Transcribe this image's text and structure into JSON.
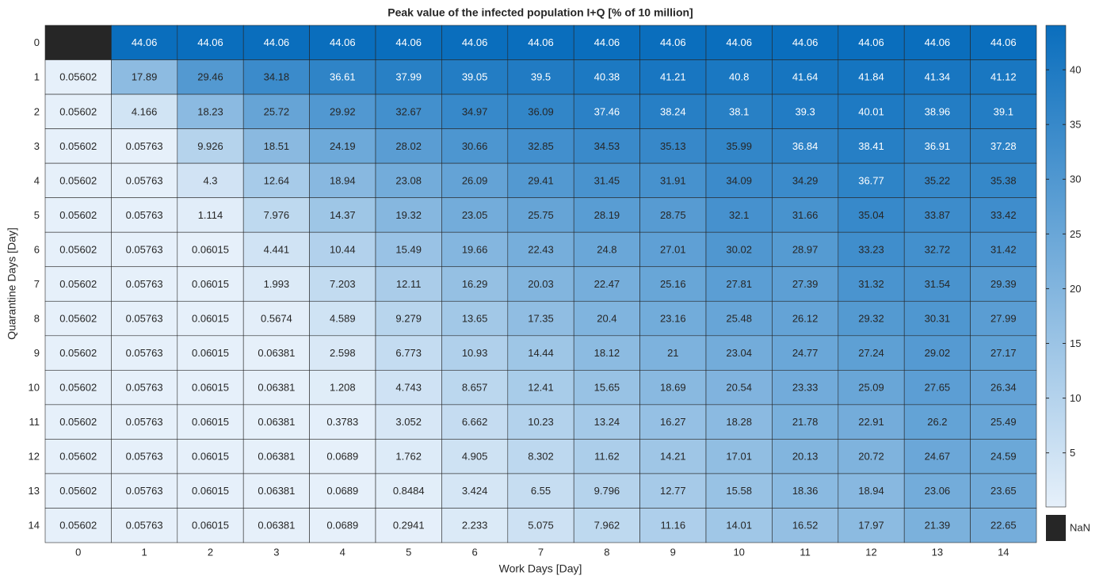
{
  "chart_data": {
    "type": "heatmap",
    "title": "Peak value of the infected population I+Q [% of 10 million]",
    "xlabel": "Work Days [Day]",
    "ylabel": "Quarantine Days [Day]",
    "x": [
      0,
      1,
      2,
      3,
      4,
      5,
      6,
      7,
      8,
      9,
      10,
      11,
      12,
      13,
      14
    ],
    "y": [
      0,
      1,
      2,
      3,
      4,
      5,
      6,
      7,
      8,
      9,
      10,
      11,
      12,
      13,
      14
    ],
    "values": [
      [
        null,
        44.06,
        44.06,
        44.06,
        44.06,
        44.06,
        44.06,
        44.06,
        44.06,
        44.06,
        44.06,
        44.06,
        44.06,
        44.06,
        44.06
      ],
      [
        0.05602,
        17.89,
        29.46,
        34.18,
        36.61,
        37.99,
        39.05,
        39.5,
        40.38,
        41.21,
        40.8,
        41.64,
        41.84,
        41.34,
        41.12
      ],
      [
        0.05602,
        4.166,
        18.23,
        25.72,
        29.92,
        32.67,
        34.97,
        36.09,
        37.46,
        38.24,
        38.1,
        39.3,
        40.01,
        38.96,
        39.1
      ],
      [
        0.05602,
        0.05763,
        9.926,
        18.51,
        24.19,
        28.02,
        30.66,
        32.85,
        34.53,
        35.13,
        35.99,
        36.84,
        38.41,
        36.91,
        37.28
      ],
      [
        0.05602,
        0.05763,
        4.3,
        12.64,
        18.94,
        23.08,
        26.09,
        29.41,
        31.45,
        31.91,
        34.09,
        34.29,
        36.77,
        35.22,
        35.38
      ],
      [
        0.05602,
        0.05763,
        1.114,
        7.976,
        14.37,
        19.32,
        23.05,
        25.75,
        28.19,
        28.75,
        32.1,
        31.66,
        35.04,
        33.87,
        33.42
      ],
      [
        0.05602,
        0.05763,
        0.06015,
        4.441,
        10.44,
        15.49,
        19.66,
        22.43,
        24.8,
        27.01,
        30.02,
        28.97,
        33.23,
        32.72,
        31.42
      ],
      [
        0.05602,
        0.05763,
        0.06015,
        1.993,
        7.203,
        12.11,
        16.29,
        20.03,
        22.47,
        25.16,
        27.81,
        27.39,
        31.32,
        31.54,
        29.39
      ],
      [
        0.05602,
        0.05763,
        0.06015,
        0.5674,
        4.589,
        9.279,
        13.65,
        17.35,
        20.4,
        23.16,
        25.48,
        26.12,
        29.32,
        30.31,
        27.99
      ],
      [
        0.05602,
        0.05763,
        0.06015,
        0.06381,
        2.598,
        6.773,
        10.93,
        14.44,
        18.12,
        21,
        23.04,
        24.77,
        27.24,
        29.02,
        27.17
      ],
      [
        0.05602,
        0.05763,
        0.06015,
        0.06381,
        1.208,
        4.743,
        8.657,
        12.41,
        15.65,
        18.69,
        20.54,
        23.33,
        25.09,
        27.65,
        26.34
      ],
      [
        0.05602,
        0.05763,
        0.06015,
        0.06381,
        0.3783,
        3.052,
        6.662,
        10.23,
        13.24,
        16.27,
        18.28,
        21.78,
        22.91,
        26.2,
        25.49
      ],
      [
        0.05602,
        0.05763,
        0.06015,
        0.06381,
        0.0689,
        1.762,
        4.905,
        8.302,
        11.62,
        14.21,
        17.01,
        20.13,
        20.72,
        24.67,
        24.59
      ],
      [
        0.05602,
        0.05763,
        0.06015,
        0.06381,
        0.0689,
        0.8484,
        3.424,
        6.55,
        9.796,
        12.77,
        15.58,
        18.36,
        18.94,
        23.06,
        23.65
      ],
      [
        0.05602,
        0.05763,
        0.06015,
        0.06381,
        0.0689,
        0.2941,
        2.233,
        5.075,
        7.962,
        11.16,
        14.01,
        16.52,
        17.97,
        21.39,
        22.65
      ]
    ],
    "clim": [
      0.05602,
      44.06
    ],
    "cticks": [
      5,
      10,
      15,
      20,
      25,
      30,
      35,
      40
    ],
    "colormap": [
      "#e6f0fa",
      "#0a6ebd"
    ],
    "nan_color": "#262626",
    "nan_label": "NaN"
  }
}
